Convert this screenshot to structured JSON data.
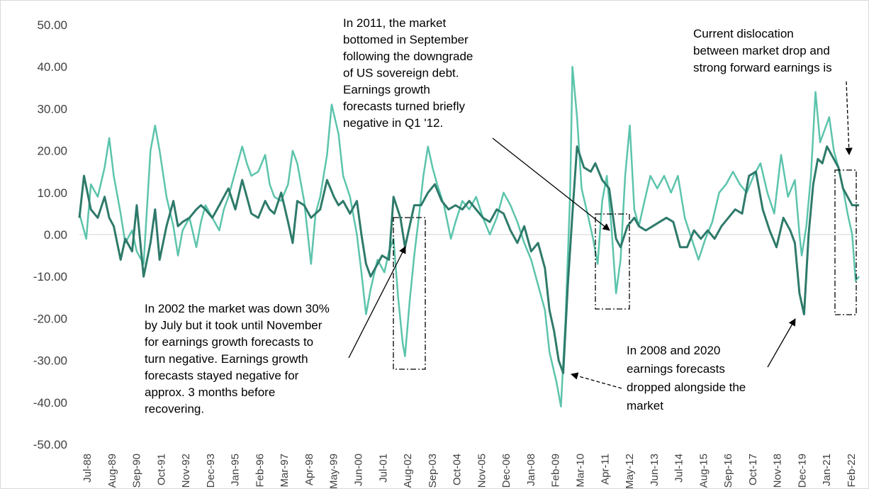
{
  "chart_data": {
    "type": "line",
    "ylim": [
      -50,
      50
    ],
    "yticks": [
      50,
      40,
      30,
      20,
      10,
      0,
      -10,
      -20,
      -30,
      -40,
      -50
    ],
    "ytick_labels": [
      "50.00",
      "40.00",
      "30.00",
      "20.00",
      "10.00",
      "0.00",
      "-10.00",
      "-20.00",
      "-30.00",
      "-40.00",
      "-50.00"
    ],
    "xtick_labels": [
      "Jul-88",
      "Aug-89",
      "Sep-90",
      "Oct-91",
      "Nov-92",
      "Dec-93",
      "Jan-95",
      "Feb-96",
      "Mar-97",
      "Apr-98",
      "May-99",
      "Jun-00",
      "Jul-01",
      "Aug-02",
      "Sep-03",
      "Oct-04",
      "Nov-05",
      "Dec-06",
      "Jan-08",
      "Feb-09",
      "Mar-10",
      "Apr-11",
      "May-12",
      "Jun-13",
      "Jul-14",
      "Aug-15",
      "Sep-16",
      "Oct-17",
      "Nov-18",
      "Dec-19",
      "Jan-21",
      "Feb-22"
    ],
    "x_range": [
      1988.5,
      2022.5
    ],
    "grid": false,
    "legend": "none",
    "series": [
      {
        "color": "#5cc4ac",
        "points": [
          [
            1988.5,
            5
          ],
          [
            1988.8,
            -1
          ],
          [
            1989.0,
            12
          ],
          [
            1989.3,
            9
          ],
          [
            1989.6,
            16
          ],
          [
            1989.8,
            23
          ],
          [
            1990.0,
            14
          ],
          [
            1990.3,
            5
          ],
          [
            1990.5,
            -2
          ],
          [
            1990.8,
            1
          ],
          [
            1991.0,
            -4
          ],
          [
            1991.3,
            -7
          ],
          [
            1991.6,
            20
          ],
          [
            1991.8,
            26
          ],
          [
            1992.0,
            20
          ],
          [
            1992.3,
            9
          ],
          [
            1992.6,
            2
          ],
          [
            1992.8,
            -5
          ],
          [
            1993.0,
            1
          ],
          [
            1993.3,
            4
          ],
          [
            1993.6,
            -3
          ],
          [
            1993.8,
            3
          ],
          [
            1994.0,
            7
          ],
          [
            1994.3,
            4
          ],
          [
            1994.6,
            1
          ],
          [
            1994.8,
            6
          ],
          [
            1995.0,
            9
          ],
          [
            1995.3,
            15
          ],
          [
            1995.6,
            21
          ],
          [
            1995.8,
            17
          ],
          [
            1996.0,
            14
          ],
          [
            1996.3,
            15
          ],
          [
            1996.6,
            19
          ],
          [
            1996.8,
            12
          ],
          [
            1997.0,
            9
          ],
          [
            1997.3,
            8
          ],
          [
            1997.6,
            12
          ],
          [
            1997.8,
            20
          ],
          [
            1998.0,
            17
          ],
          [
            1998.3,
            8
          ],
          [
            1998.6,
            -7
          ],
          [
            1998.8,
            5
          ],
          [
            1999.0,
            9
          ],
          [
            1999.3,
            19
          ],
          [
            1999.5,
            31
          ],
          [
            1999.8,
            24
          ],
          [
            2000.0,
            14
          ],
          [
            2000.3,
            9
          ],
          [
            2000.6,
            0
          ],
          [
            2000.8,
            -9
          ],
          [
            2001.0,
            -19
          ],
          [
            2001.2,
            -13
          ],
          [
            2001.5,
            -6
          ],
          [
            2001.8,
            -9
          ],
          [
            2002.0,
            -4
          ],
          [
            2002.2,
            -1
          ],
          [
            2002.4,
            -15
          ],
          [
            2002.6,
            -26
          ],
          [
            2002.7,
            -29
          ],
          [
            2002.9,
            -16
          ],
          [
            2003.1,
            -5
          ],
          [
            2003.3,
            4
          ],
          [
            2003.5,
            14
          ],
          [
            2003.7,
            21
          ],
          [
            2003.9,
            16
          ],
          [
            2004.1,
            12
          ],
          [
            2004.4,
            7
          ],
          [
            2004.7,
            -1
          ],
          [
            2004.9,
            3
          ],
          [
            2005.2,
            8
          ],
          [
            2005.5,
            6
          ],
          [
            2005.8,
            9
          ],
          [
            2006.1,
            4
          ],
          [
            2006.4,
            0
          ],
          [
            2006.7,
            4
          ],
          [
            2007.0,
            10
          ],
          [
            2007.3,
            7
          ],
          [
            2007.6,
            3
          ],
          [
            2007.9,
            -2
          ],
          [
            2008.2,
            -6
          ],
          [
            2008.5,
            -12
          ],
          [
            2008.8,
            -18
          ],
          [
            2009.0,
            -28
          ],
          [
            2009.3,
            -35
          ],
          [
            2009.5,
            -41
          ],
          [
            2009.7,
            -20
          ],
          [
            2009.9,
            10
          ],
          [
            2010.0,
            40
          ],
          [
            2010.2,
            28
          ],
          [
            2010.4,
            11
          ],
          [
            2010.7,
            4
          ],
          [
            2010.9,
            -1
          ],
          [
            2011.1,
            -7
          ],
          [
            2011.3,
            8
          ],
          [
            2011.5,
            14
          ],
          [
            2011.7,
            2
          ],
          [
            2011.9,
            -14
          ],
          [
            2012.1,
            -6
          ],
          [
            2012.3,
            14
          ],
          [
            2012.5,
            26
          ],
          [
            2012.7,
            6
          ],
          [
            2012.9,
            2
          ],
          [
            2013.1,
            7
          ],
          [
            2013.4,
            14
          ],
          [
            2013.7,
            11
          ],
          [
            2014.0,
            14
          ],
          [
            2014.3,
            10
          ],
          [
            2014.6,
            14
          ],
          [
            2014.9,
            4
          ],
          [
            2015.2,
            -1
          ],
          [
            2015.5,
            -6
          ],
          [
            2015.8,
            -1
          ],
          [
            2016.1,
            3
          ],
          [
            2016.4,
            10
          ],
          [
            2016.7,
            12
          ],
          [
            2017.0,
            15
          ],
          [
            2017.3,
            12
          ],
          [
            2017.6,
            10
          ],
          [
            2017.9,
            14
          ],
          [
            2018.2,
            17
          ],
          [
            2018.5,
            10
          ],
          [
            2018.8,
            5
          ],
          [
            2019.1,
            19
          ],
          [
            2019.4,
            9
          ],
          [
            2019.7,
            13
          ],
          [
            2019.9,
            0
          ],
          [
            2020.0,
            -5
          ],
          [
            2020.2,
            2
          ],
          [
            2020.4,
            14
          ],
          [
            2020.6,
            34
          ],
          [
            2020.8,
            22
          ],
          [
            2021.0,
            25
          ],
          [
            2021.2,
            28
          ],
          [
            2021.4,
            20
          ],
          [
            2021.6,
            16
          ],
          [
            2021.8,
            11
          ],
          [
            2022.0,
            5
          ],
          [
            2022.2,
            0
          ],
          [
            2022.35,
            -11
          ],
          [
            2022.5,
            -10
          ]
        ]
      },
      {
        "color": "#2e7a6a",
        "points": [
          [
            1988.5,
            4
          ],
          [
            1988.7,
            14
          ],
          [
            1989.0,
            6
          ],
          [
            1989.3,
            4
          ],
          [
            1989.6,
            9
          ],
          [
            1989.8,
            4
          ],
          [
            1990.0,
            2
          ],
          [
            1990.3,
            -6
          ],
          [
            1990.5,
            -1
          ],
          [
            1990.8,
            -4
          ],
          [
            1991.0,
            7
          ],
          [
            1991.3,
            -10
          ],
          [
            1991.6,
            -2
          ],
          [
            1991.8,
            6
          ],
          [
            1992.0,
            -6
          ],
          [
            1992.3,
            2
          ],
          [
            1992.6,
            8
          ],
          [
            1992.8,
            2
          ],
          [
            1993.0,
            3
          ],
          [
            1993.3,
            4
          ],
          [
            1993.6,
            6
          ],
          [
            1993.8,
            7
          ],
          [
            1994.0,
            6
          ],
          [
            1994.3,
            4
          ],
          [
            1994.6,
            7
          ],
          [
            1994.8,
            9
          ],
          [
            1995.0,
            11
          ],
          [
            1995.3,
            6
          ],
          [
            1995.6,
            13
          ],
          [
            1995.8,
            9
          ],
          [
            1996.0,
            5
          ],
          [
            1996.3,
            4
          ],
          [
            1996.6,
            8
          ],
          [
            1996.8,
            6
          ],
          [
            1997.0,
            5
          ],
          [
            1997.3,
            10
          ],
          [
            1997.6,
            3
          ],
          [
            1997.8,
            -2
          ],
          [
            1998.0,
            8
          ],
          [
            1998.3,
            7
          ],
          [
            1998.6,
            4
          ],
          [
            1998.8,
            5
          ],
          [
            1999.0,
            6
          ],
          [
            1999.3,
            13
          ],
          [
            1999.6,
            9
          ],
          [
            1999.8,
            7
          ],
          [
            2000.0,
            8
          ],
          [
            2000.3,
            5
          ],
          [
            2000.6,
            8
          ],
          [
            2000.8,
            0
          ],
          [
            2001.0,
            -7
          ],
          [
            2001.2,
            -10
          ],
          [
            2001.4,
            -8
          ],
          [
            2001.7,
            -5
          ],
          [
            2002.0,
            -6
          ],
          [
            2002.2,
            9
          ],
          [
            2002.5,
            4
          ],
          [
            2002.7,
            -3
          ],
          [
            2002.9,
            2
          ],
          [
            2003.1,
            7
          ],
          [
            2003.4,
            7
          ],
          [
            2003.7,
            10
          ],
          [
            2004.0,
            12
          ],
          [
            2004.3,
            8
          ],
          [
            2004.6,
            6
          ],
          [
            2004.9,
            7
          ],
          [
            2005.2,
            6
          ],
          [
            2005.5,
            8
          ],
          [
            2005.8,
            6
          ],
          [
            2006.1,
            4
          ],
          [
            2006.4,
            3
          ],
          [
            2006.7,
            6
          ],
          [
            2007.0,
            5
          ],
          [
            2007.3,
            1
          ],
          [
            2007.6,
            -2
          ],
          [
            2007.9,
            2
          ],
          [
            2008.2,
            -4
          ],
          [
            2008.5,
            -2
          ],
          [
            2008.8,
            -8
          ],
          [
            2009.0,
            -18
          ],
          [
            2009.2,
            -23
          ],
          [
            2009.4,
            -30
          ],
          [
            2009.6,
            -33
          ],
          [
            2009.8,
            -12
          ],
          [
            2010.0,
            5
          ],
          [
            2010.2,
            21
          ],
          [
            2010.5,
            16
          ],
          [
            2010.8,
            15
          ],
          [
            2011.0,
            17
          ],
          [
            2011.3,
            13
          ],
          [
            2011.6,
            11
          ],
          [
            2011.9,
            -1
          ],
          [
            2012.1,
            -3
          ],
          [
            2012.4,
            2
          ],
          [
            2012.7,
            4
          ],
          [
            2012.9,
            2
          ],
          [
            2013.2,
            1
          ],
          [
            2013.5,
            2
          ],
          [
            2013.8,
            3
          ],
          [
            2014.1,
            4
          ],
          [
            2014.4,
            3
          ],
          [
            2014.7,
            -3
          ],
          [
            2015.0,
            -3
          ],
          [
            2015.3,
            1
          ],
          [
            2015.6,
            -1
          ],
          [
            2015.9,
            1
          ],
          [
            2016.2,
            -1
          ],
          [
            2016.5,
            2
          ],
          [
            2016.8,
            4
          ],
          [
            2017.1,
            6
          ],
          [
            2017.4,
            5
          ],
          [
            2017.7,
            14
          ],
          [
            2018.0,
            15
          ],
          [
            2018.3,
            6
          ],
          [
            2018.6,
            1
          ],
          [
            2018.9,
            -3
          ],
          [
            2019.2,
            4
          ],
          [
            2019.5,
            1
          ],
          [
            2019.7,
            -2
          ],
          [
            2019.9,
            -14
          ],
          [
            2020.1,
            -19
          ],
          [
            2020.3,
            0
          ],
          [
            2020.5,
            12
          ],
          [
            2020.7,
            18
          ],
          [
            2020.9,
            17
          ],
          [
            2021.1,
            21
          ],
          [
            2021.3,
            19
          ],
          [
            2021.6,
            16
          ],
          [
            2021.8,
            11
          ],
          [
            2022.0,
            9
          ],
          [
            2022.2,
            7
          ],
          [
            2022.5,
            7
          ]
        ]
      }
    ],
    "annotations": [
      {
        "id": "a2002",
        "lines": [
          "In 2002 the market was down 30%",
          "by July but it took until November",
          "for earnings growth forecasts to",
          "turn negative. Earnings growth",
          "forecasts stayed negative for",
          "approx. 3 months before",
          "recovering."
        ]
      },
      {
        "id": "a2011",
        "lines": [
          "In 2011, the market",
          "bottomed in September",
          "following the downgrade",
          "of US sovereign debt.",
          "Earnings growth",
          "forecasts turned briefly",
          "negative in Q1 '12."
        ]
      },
      {
        "id": "a2008",
        "lines": [
          "In 2008 and 2020",
          "earnings forecasts",
          "dropped alongside the",
          "market"
        ]
      },
      {
        "id": "acurrent",
        "lines": [
          "Current dislocation",
          "between market drop and",
          "strong forward earnings is"
        ]
      }
    ]
  }
}
